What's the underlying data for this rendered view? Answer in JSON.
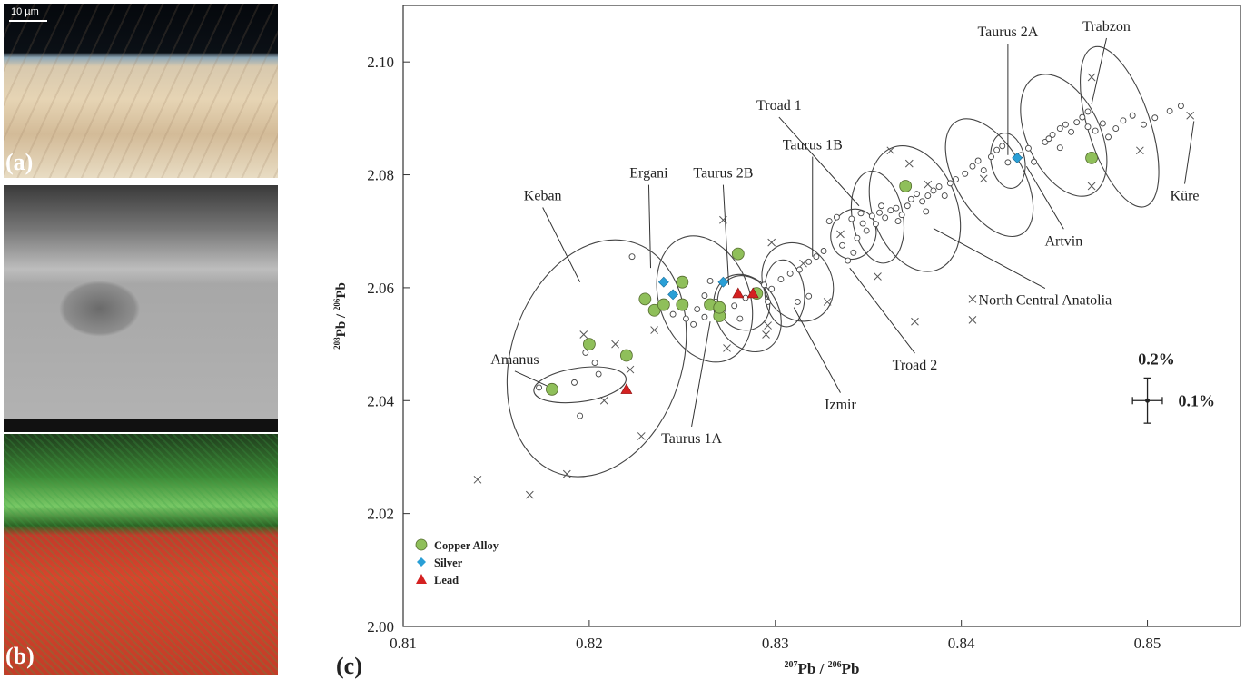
{
  "panels": {
    "a": {
      "label": "(a)",
      "scale_text": "10 µm"
    },
    "b": {
      "label": "(b)"
    },
    "c": {
      "label": "(c)"
    }
  },
  "chart_data": {
    "type": "scatter",
    "xlabel_main": "Pb / ",
    "xlabel_sup1": "207",
    "xlabel_sup2": "206",
    "xlabel_tail": "Pb",
    "ylabel_sup1": "208",
    "ylabel_mid": "Pb / ",
    "ylabel_sup2": "206",
    "ylabel_tail": "Pb",
    "xlim": [
      0.81,
      0.855
    ],
    "ylim": [
      2.0,
      2.11
    ],
    "xticks": [
      0.81,
      0.82,
      0.83,
      0.84,
      0.85
    ],
    "yticks": [
      2.0,
      2.02,
      2.04,
      2.06,
      2.08,
      2.1
    ],
    "xtick_labels": [
      "0.81",
      "0.82",
      "0.83",
      "0.84",
      "0.85"
    ],
    "ytick_labels": [
      "2.00",
      "2.02",
      "2.04",
      "2.06",
      "2.08",
      "2.10"
    ],
    "legend": {
      "position": "bottom-left",
      "entries": [
        {
          "name": "Copper Alloy",
          "color": "#8fbf5a",
          "marker": "circle"
        },
        {
          "name": "Silver",
          "color": "#2a9fd6",
          "marker": "diamond"
        },
        {
          "name": "Lead",
          "color": "#d42121",
          "marker": "triangle"
        }
      ]
    },
    "error_bar": {
      "x": 0.85,
      "y": 2.04,
      "label_y": "0.2%",
      "label_x": "0.1%",
      "dx": 0.0008,
      "dy": 0.004
    },
    "regions": [
      {
        "name": "Amanus",
        "cx": 0.8195,
        "cy": 2.0428,
        "rx": 0.0025,
        "ry": 0.003,
        "angle": -8,
        "label_x": 0.816,
        "label_y": 2.0465,
        "leader": [
          0.8178,
          2.0425
        ]
      },
      {
        "name": "Keban",
        "cx": 0.8204,
        "cy": 2.0475,
        "rx": 0.0046,
        "ry": 0.0215,
        "angle": 18,
        "label_x": 0.8175,
        "label_y": 2.0755,
        "leader": [
          0.8195,
          2.061
        ]
      },
      {
        "name": "Ergani",
        "cx": 0.8262,
        "cy": 2.058,
        "rx": 0.0035,
        "ry": 0.008,
        "angle": 70,
        "label_x": 0.8232,
        "label_y": 2.0795,
        "leader": [
          0.8233,
          2.0635
        ]
      },
      {
        "name": "Taurus 2B",
        "cx": 0.8283,
        "cy": 2.0573,
        "rx": 0.0015,
        "ry": 0.0045,
        "angle": 60,
        "label_x": 0.8272,
        "label_y": 2.0795,
        "leader": [
          0.8275,
          2.0605
        ]
      },
      {
        "name": "Taurus 1B",
        "cx": 0.8312,
        "cy": 2.061,
        "rx": 0.0022,
        "ry": 0.006,
        "angle": 60,
        "label_x": 0.832,
        "label_y": 2.0845,
        "leader": [
          0.832,
          2.0655
        ]
      },
      {
        "name": "Taurus 1A",
        "cx": 0.8285,
        "cy": 2.0555,
        "rx": 0.0022,
        "ry": 0.0055,
        "angle": 60,
        "label_x": 0.8255,
        "label_y": 2.0325,
        "leader": [
          0.8265,
          2.054
        ]
      },
      {
        "name": "Izmir",
        "cx": 0.8305,
        "cy": 2.059,
        "rx": 0.0018,
        "ry": 0.0035,
        "angle": 85,
        "label_x": 0.8335,
        "label_y": 2.0385,
        "leader": [
          0.831,
          2.0565
        ]
      },
      {
        "name": "Troad 1",
        "cx": 0.8355,
        "cy": 2.0725,
        "rx": 0.0025,
        "ry": 0.0045,
        "angle": 80,
        "label_x": 0.8302,
        "label_y": 2.0915,
        "leader": [
          0.8345,
          2.0745
        ]
      },
      {
        "name": "Troad 2",
        "cx": 0.8342,
        "cy": 2.0695,
        "rx": 0.0012,
        "ry": 0.0045,
        "angle": 20,
        "label_x": 0.8375,
        "label_y": 2.0455,
        "leader": [
          0.834,
          2.0635
        ]
      },
      {
        "name": "North Central Anatolia",
        "cx": 0.8375,
        "cy": 2.074,
        "rx": 0.0035,
        "ry": 0.0075,
        "angle": 70,
        "label_x": 0.8445,
        "label_y": 2.057,
        "leader": [
          0.8385,
          2.0705
        ]
      },
      {
        "name": "Taurus 2A",
        "cx": 0.8415,
        "cy": 2.0795,
        "rx": 0.0035,
        "ry": 0.006,
        "angle": 60,
        "label_x": 0.8425,
        "label_y": 2.1045,
        "leader": [
          0.8425,
          2.0835
        ]
      },
      {
        "name": "Artvin",
        "cx": 0.8425,
        "cy": 2.0825,
        "rx": 0.0015,
        "ry": 0.003,
        "angle": 80,
        "label_x": 0.8455,
        "label_y": 2.0675,
        "leader": [
          0.8435,
          2.0815
        ]
      },
      {
        "name": "Trabzon",
        "cx": 0.8455,
        "cy": 2.087,
        "rx": 0.0035,
        "ry": 0.0065,
        "angle": 65,
        "label_x": 0.8478,
        "label_y": 2.1055,
        "leader": [
          0.847,
          2.0925
        ]
      },
      {
        "name": "Küre",
        "cx": 0.8485,
        "cy": 2.0885,
        "rx": 0.0045,
        "ry": 0.0055,
        "angle": 72,
        "label_x": 0.852,
        "label_y": 2.0755,
        "leader": [
          0.8525,
          2.0895
        ]
      }
    ],
    "series_copper_alloy": [
      [
        0.818,
        2.042
      ],
      [
        0.82,
        2.05
      ],
      [
        0.822,
        2.048
      ],
      [
        0.823,
        2.058
      ],
      [
        0.8235,
        2.056
      ],
      [
        0.824,
        2.057
      ],
      [
        0.825,
        2.061
      ],
      [
        0.825,
        2.057
      ],
      [
        0.8265,
        2.057
      ],
      [
        0.827,
        2.055
      ],
      [
        0.827,
        2.0565
      ],
      [
        0.828,
        2.066
      ],
      [
        0.829,
        2.059
      ],
      [
        0.837,
        2.078
      ],
      [
        0.847,
        2.083
      ]
    ],
    "series_silver": [
      [
        0.824,
        2.061
      ],
      [
        0.8245,
        2.0588
      ],
      [
        0.8272,
        2.061
      ],
      [
        0.843,
        2.083
      ]
    ],
    "series_lead": [
      [
        0.822,
        2.042
      ],
      [
        0.828,
        2.059
      ],
      [
        0.8288,
        2.059
      ]
    ],
    "reference_x_points": [
      [
        0.814,
        2.026
      ],
      [
        0.8168,
        2.0233
      ],
      [
        0.8188,
        2.027
      ],
      [
        0.8228,
        2.0337
      ],
      [
        0.8214,
        2.05
      ],
      [
        0.8222,
        2.0455
      ],
      [
        0.8208,
        2.04
      ],
      [
        0.8197,
        2.0517
      ],
      [
        0.8272,
        2.072
      ],
      [
        0.8274,
        2.0493
      ],
      [
        0.8295,
        2.0517
      ],
      [
        0.8298,
        2.068
      ],
      [
        0.8296,
        2.0533
      ],
      [
        0.8315,
        2.0643
      ],
      [
        0.8328,
        2.0575
      ],
      [
        0.8355,
        2.062
      ],
      [
        0.8375,
        2.054
      ],
      [
        0.8406,
        2.0543
      ],
      [
        0.8406,
        2.058
      ],
      [
        0.8362,
        2.0843
      ],
      [
        0.8372,
        2.082
      ],
      [
        0.847,
        2.078
      ],
      [
        0.847,
        2.0973
      ],
      [
        0.8496,
        2.0843
      ],
      [
        0.8523,
        2.0905
      ],
      [
        0.8235,
        2.0525
      ],
      [
        0.8335,
        2.0695
      ],
      [
        0.8382,
        2.0783
      ],
      [
        0.8412,
        2.0793
      ]
    ],
    "reference_circle_points": [
      [
        0.8173,
        2.0423
      ],
      [
        0.8192,
        2.0432
      ],
      [
        0.8198,
        2.0485
      ],
      [
        0.8203,
        2.0467
      ],
      [
        0.8195,
        2.0373
      ],
      [
        0.8223,
        2.0655
      ],
      [
        0.8205,
        2.0447
      ],
      [
        0.8245,
        2.0553
      ],
      [
        0.8252,
        2.0545
      ],
      [
        0.8258,
        2.0562
      ],
      [
        0.8262,
        2.0548
      ],
      [
        0.8268,
        2.0575
      ],
      [
        0.8272,
        2.0555
      ],
      [
        0.8278,
        2.0568
      ],
      [
        0.8284,
        2.0582
      ],
      [
        0.8289,
        2.0595
      ],
      [
        0.8294,
        2.0605
      ],
      [
        0.8298,
        2.0598
      ],
      [
        0.8303,
        2.0615
      ],
      [
        0.8308,
        2.0625
      ],
      [
        0.8313,
        2.0632
      ],
      [
        0.8318,
        2.0646
      ],
      [
        0.8322,
        2.0655
      ],
      [
        0.8326,
        2.0665
      ],
      [
        0.8312,
        2.0575
      ],
      [
        0.8318,
        2.0585
      ],
      [
        0.8296,
        2.0575
      ],
      [
        0.8281,
        2.0545
      ],
      [
        0.8256,
        2.0535
      ],
      [
        0.8265,
        2.0612
      ],
      [
        0.8262,
        2.0586
      ],
      [
        0.8339,
        2.0648
      ],
      [
        0.8342,
        2.0662
      ],
      [
        0.8336,
        2.0675
      ],
      [
        0.8344,
        2.0688
      ],
      [
        0.8349,
        2.0701
      ],
      [
        0.8347,
        2.0714
      ],
      [
        0.8352,
        2.0727
      ],
      [
        0.8356,
        2.0733
      ],
      [
        0.8359,
        2.0724
      ],
      [
        0.8362,
        2.0737
      ],
      [
        0.8365,
        2.0741
      ],
      [
        0.8368,
        2.0729
      ],
      [
        0.8371,
        2.0745
      ],
      [
        0.8373,
        2.0757
      ],
      [
        0.8376,
        2.0766
      ],
      [
        0.8379,
        2.0753
      ],
      [
        0.8382,
        2.0763
      ],
      [
        0.8385,
        2.0772
      ],
      [
        0.8388,
        2.0779
      ],
      [
        0.8391,
        2.0763
      ],
      [
        0.8394,
        2.0785
      ],
      [
        0.8397,
        2.0792
      ],
      [
        0.8354,
        2.0713
      ],
      [
        0.8346,
        2.0732
      ],
      [
        0.8341,
        2.0722
      ],
      [
        0.8357,
        2.0745
      ],
      [
        0.8333,
        2.0725
      ],
      [
        0.8329,
        2.0718
      ],
      [
        0.8366,
        2.0718
      ],
      [
        0.8381,
        2.0735
      ],
      [
        0.8402,
        2.0802
      ],
      [
        0.8406,
        2.0815
      ],
      [
        0.8409,
        2.0825
      ],
      [
        0.8412,
        2.0808
      ],
      [
        0.8416,
        2.0832
      ],
      [
        0.8419,
        2.0844
      ],
      [
        0.8422,
        2.0851
      ],
      [
        0.8425,
        2.0822
      ],
      [
        0.8432,
        2.0835
      ],
      [
        0.8436,
        2.0847
      ],
      [
        0.8439,
        2.0823
      ],
      [
        0.8445,
        2.0858
      ],
      [
        0.8449,
        2.0871
      ],
      [
        0.8453,
        2.0882
      ],
      [
        0.8456,
        2.0889
      ],
      [
        0.8459,
        2.0876
      ],
      [
        0.8462,
        2.0893
      ],
      [
        0.8465,
        2.0902
      ],
      [
        0.8468,
        2.0885
      ],
      [
        0.8472,
        2.0878
      ],
      [
        0.8476,
        2.0891
      ],
      [
        0.8479,
        2.0867
      ],
      [
        0.8483,
        2.0882
      ],
      [
        0.8487,
        2.0896
      ],
      [
        0.8492,
        2.0905
      ],
      [
        0.8498,
        2.0889
      ],
      [
        0.8504,
        2.0901
      ],
      [
        0.8512,
        2.0913
      ],
      [
        0.8518,
        2.0922
      ],
      [
        0.8453,
        2.0848
      ],
      [
        0.8447,
        2.0864
      ],
      [
        0.8468,
        2.0912
      ]
    ]
  }
}
